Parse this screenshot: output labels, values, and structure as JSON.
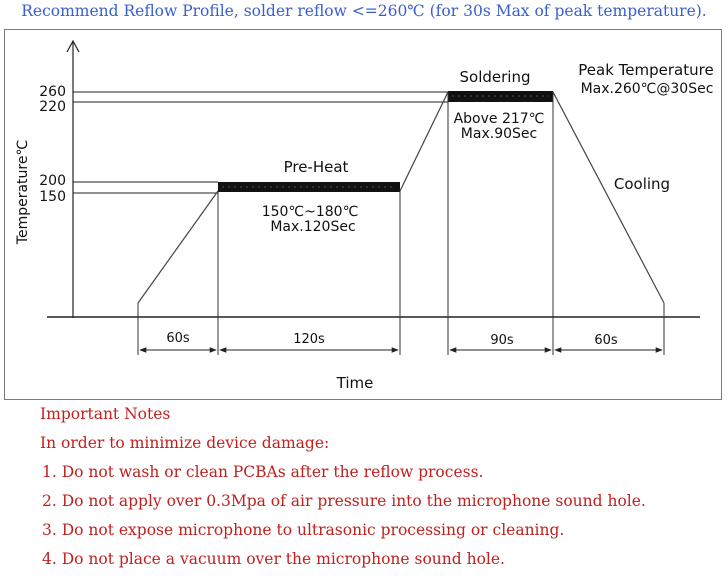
{
  "title": "Recommend Reflow Profile, solder reflow <=260℃ (for 30s Max of peak temperature).",
  "diagram": {
    "y_axis_label": "Temperature℃",
    "x_axis_label": "Time",
    "temp_ticks": [
      "260",
      "220",
      "200",
      "150"
    ],
    "stages": {
      "preheat": {
        "label": "Pre-Heat",
        "detail_1": "150℃~180℃",
        "detail_2": "Max.120Sec"
      },
      "soldering": {
        "label": "Soldering",
        "detail_1": "Above 217℃",
        "detail_2": "Max.90Sec"
      },
      "peak": {
        "label_1": "Peak Temperature",
        "label_2": "Max.260℃@30Sec"
      },
      "cooling": {
        "label": "Cooling"
      }
    },
    "durations": [
      "60s",
      "120s",
      "90s",
      "60s"
    ]
  },
  "notes": {
    "heading": "Important Notes",
    "intro": "In order to minimize device damage:",
    "items": [
      "1. Do not wash or clean PCBAs after the reflow process.",
      "2. Do not apply over 0.3Mpa of air pressure into the microphone sound hole.",
      "3. Do not expose microphone to ultrasonic processing or cleaning.",
      "4. Do not place a vacuum over the microphone sound hole."
    ]
  },
  "colors": {
    "title": "#3a5fcd",
    "notes": "#c0201e",
    "line": "#222222"
  }
}
